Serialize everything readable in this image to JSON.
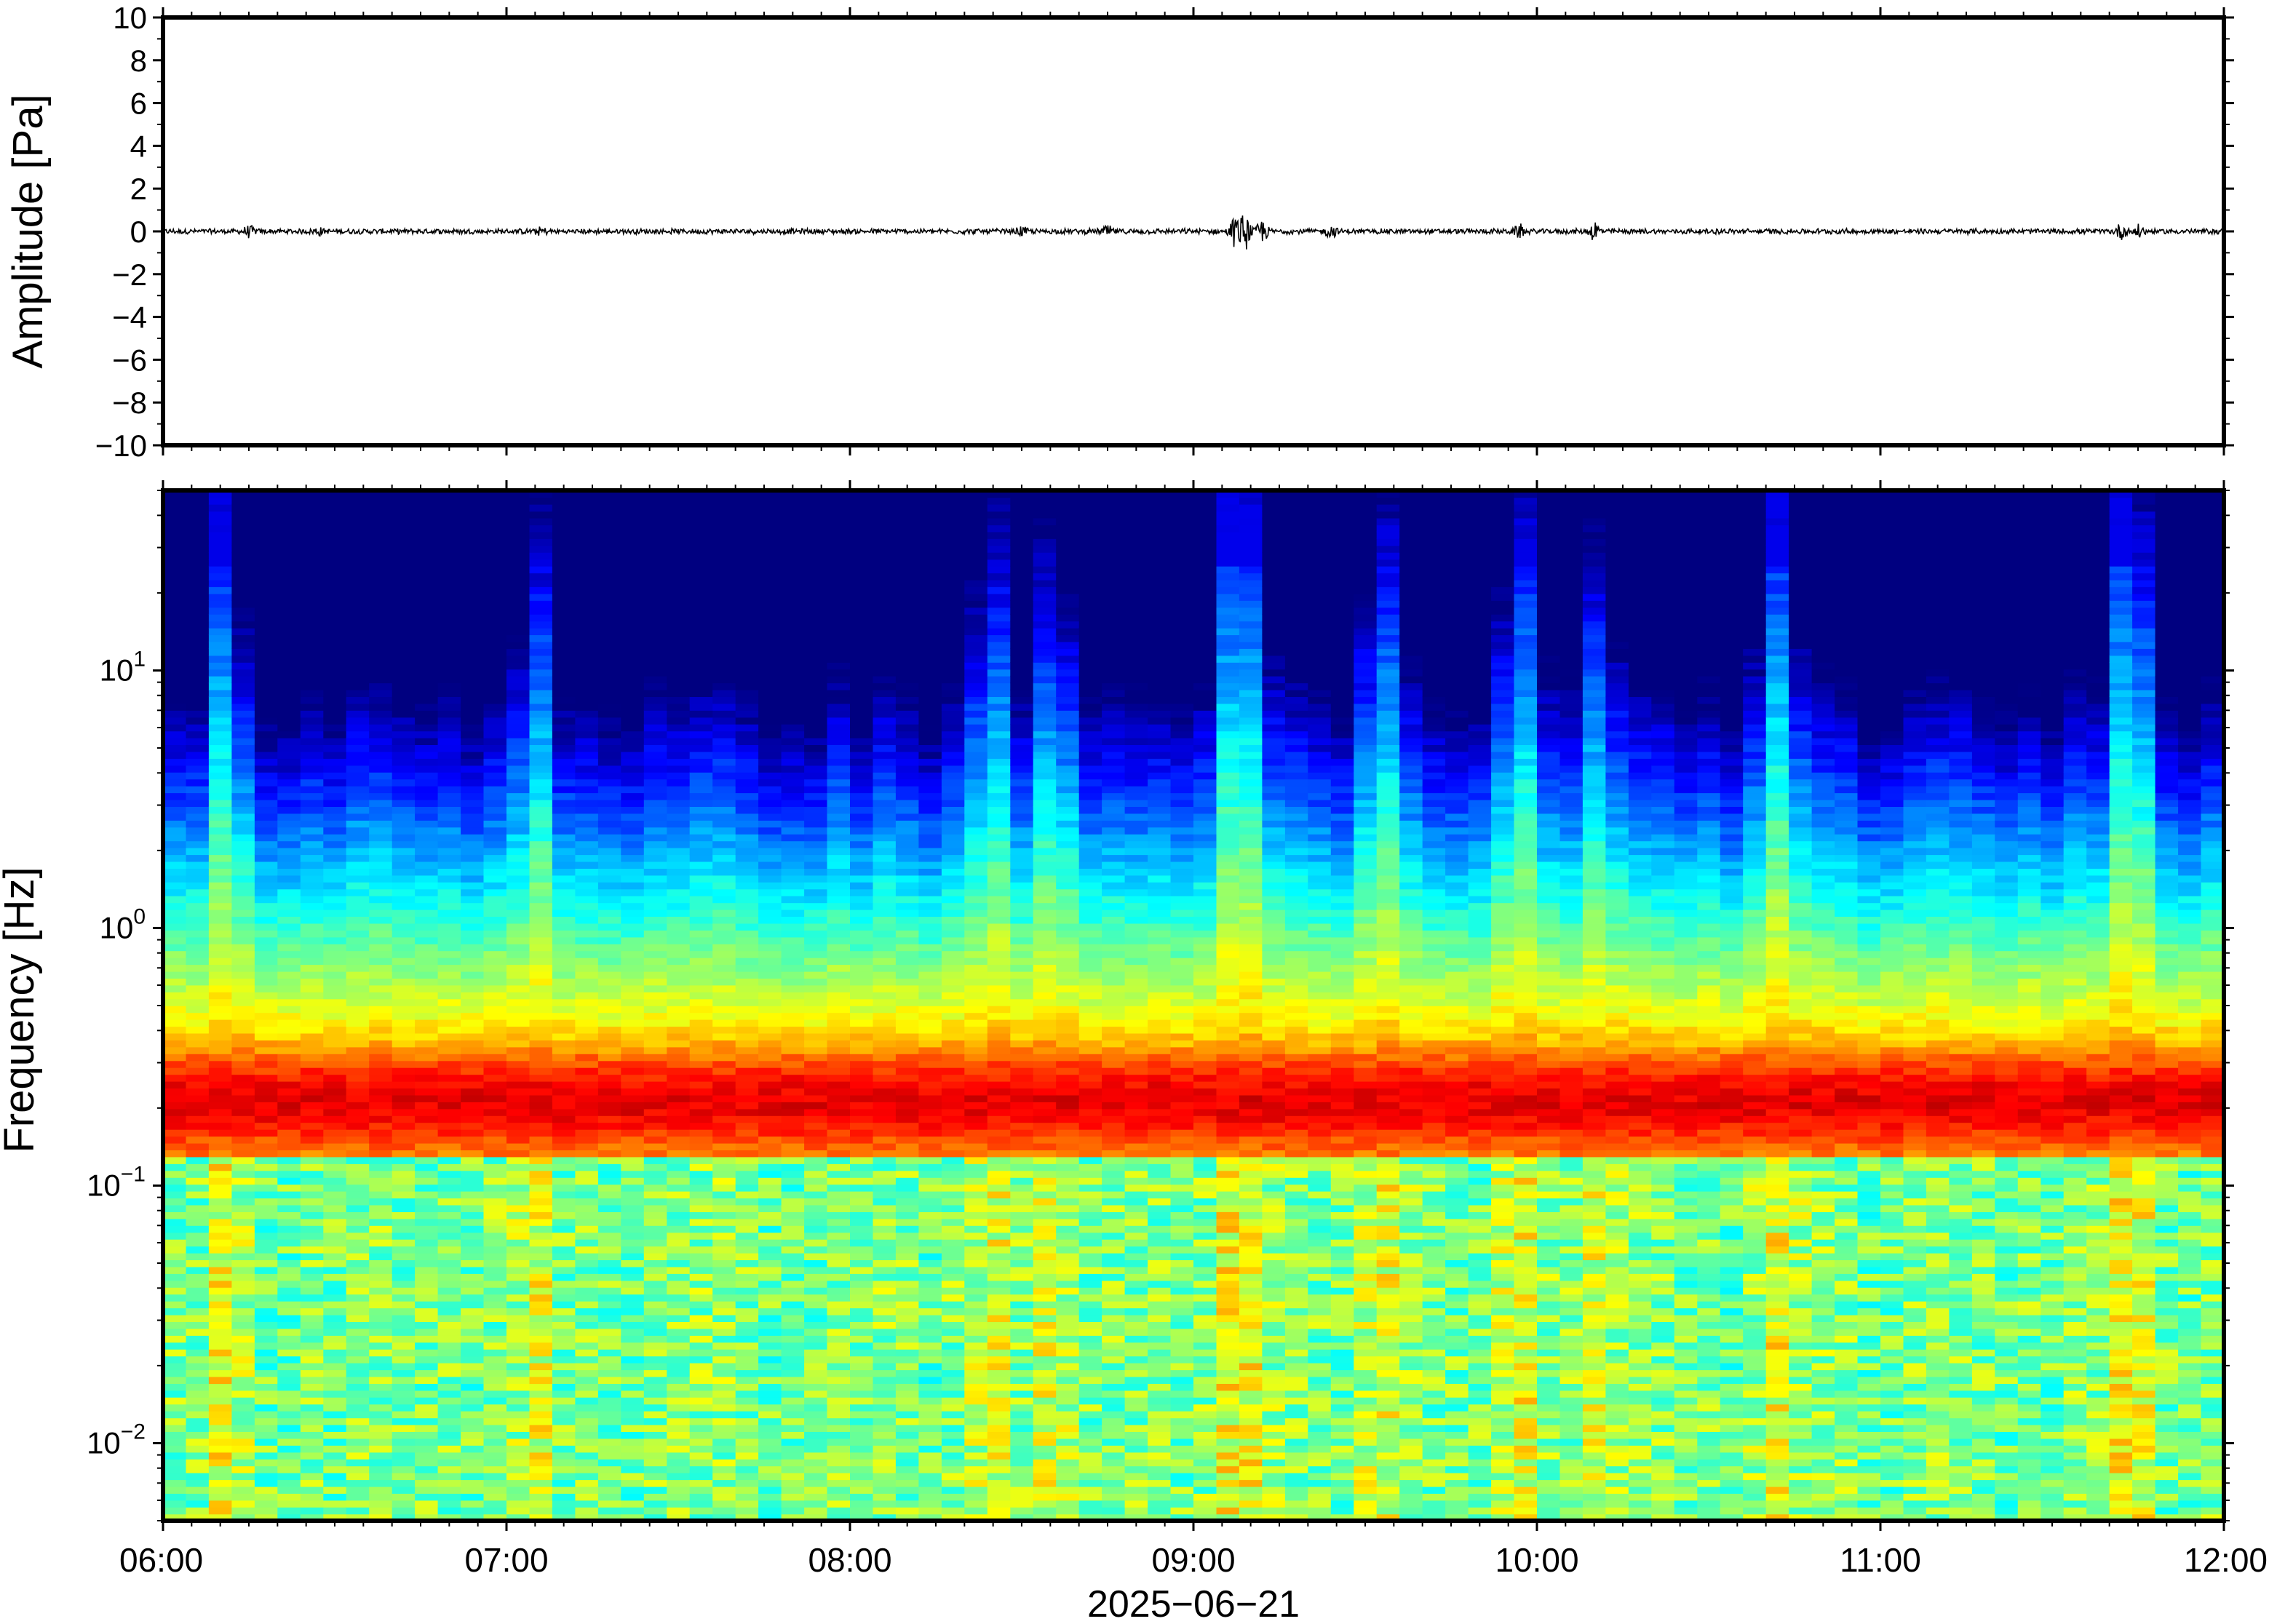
{
  "chart_data": [
    {
      "type": "line",
      "panel": "waveform",
      "ylabel": "Amplitude [Pa]",
      "ylim": [
        -10,
        10
      ],
      "yticks": [
        -10,
        -8,
        -6,
        -4,
        -2,
        0,
        2,
        4,
        6,
        8,
        10
      ],
      "ytick_labels": [
        "−10",
        "−8",
        "−6",
        "−4",
        "−2",
        "0",
        "2",
        "4",
        "6",
        "8",
        "10"
      ],
      "xlim_hours": [
        6,
        12
      ],
      "series": [
        {
          "values_note_free": true,
          "baseline": 0,
          "peak_times_hours": [
            6.25,
            6.45,
            7.1,
            8.5,
            8.75,
            9.12,
            9.15,
            9.2,
            9.4,
            9.95,
            10.17,
            11.7,
            11.75
          ],
          "peak_amplitudes": [
            0.2,
            0.15,
            0.15,
            0.15,
            0.2,
            0.6,
            0.8,
            0.5,
            0.25,
            0.25,
            0.45,
            0.3,
            0.25
          ]
        }
      ],
      "color": "#000000"
    },
    {
      "type": "heatmap",
      "panel": "spectrogram",
      "ylabel": "Frequency [Hz]",
      "yscale": "log",
      "ylim": [
        0.005,
        50
      ],
      "yticks": [
        0.01,
        0.1,
        1,
        10
      ],
      "ytick_labels": [
        {
          "base": "10",
          "exp": "−2"
        },
        {
          "base": "10",
          "exp": "−1"
        },
        {
          "base": "10",
          "exp": "0"
        },
        {
          "base": "10",
          "exp": "1"
        }
      ],
      "xlabel": "2025−06−21",
      "xlim_hours": [
        6,
        12
      ],
      "xticks_hours": [
        6,
        7,
        8,
        9,
        10,
        11,
        12
      ],
      "xtick_labels": [
        "06:00",
        "07:00",
        "08:00",
        "09:00",
        "10:00",
        "11:00",
        "12:00"
      ],
      "colormap": "jet",
      "dominant_band_hz": [
        0.15,
        0.3
      ],
      "active_times_hours": [
        6.17,
        7.08,
        8.4,
        8.6,
        9.1,
        9.15,
        9.55,
        9.95,
        10.17,
        10.7,
        11.7,
        11.75
      ],
      "colors": [
        "#00007f",
        "#0000ff",
        "#007fff",
        "#00ffff",
        "#7fff7f",
        "#ffff00",
        "#ff7f00",
        "#ff0000"
      ]
    }
  ]
}
